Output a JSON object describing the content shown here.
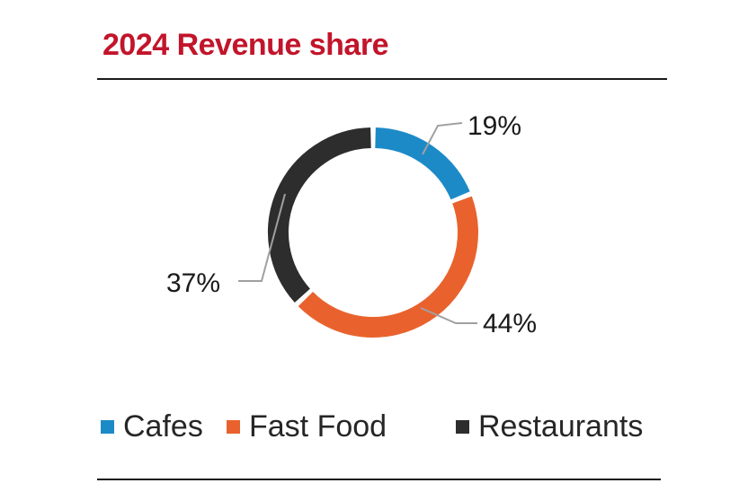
{
  "page": {
    "title": "2024 Revenue share"
  },
  "colors": {
    "title_red": "#C2152B",
    "rule": "#1A1A1A",
    "leader": "#A0A0A0",
    "text": "#1A1A1A"
  },
  "chart_data": {
    "type": "pie",
    "subtype": "donut",
    "title": "2024 Revenue share",
    "categories": [
      "Cafes",
      "Fast Food",
      "Restaurants"
    ],
    "values": [
      19,
      44,
      37
    ],
    "unit": "%",
    "labels": [
      "19%",
      "44%",
      "37%"
    ],
    "colors": [
      "#1D8AC8",
      "#E9622D",
      "#2D2D2D"
    ],
    "start_angle_deg": 0,
    "direction": "clockwise",
    "legend_position": "bottom"
  }
}
